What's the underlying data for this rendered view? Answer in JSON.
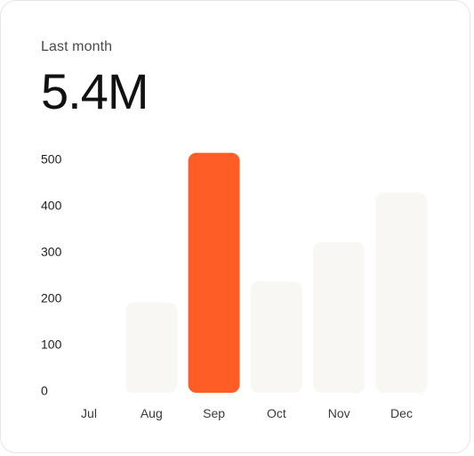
{
  "card": {
    "subtitle": "Last month",
    "headline": "5.4M"
  },
  "colors": {
    "accent": "#ff5c26",
    "bar_default": "#f8f7f4",
    "text": "#111111"
  },
  "chart_data": {
    "type": "bar",
    "categories": [
      "Jul",
      "Aug",
      "Sep",
      "Oct",
      "Nov",
      "Dec"
    ],
    "values": [
      0,
      195,
      518,
      240,
      325,
      432
    ],
    "highlight_index": 2,
    "yticks": [
      0,
      100,
      200,
      300,
      400,
      500
    ],
    "ylim": [
      0,
      520
    ],
    "grid": false,
    "title": "",
    "xlabel": "",
    "ylabel": ""
  }
}
